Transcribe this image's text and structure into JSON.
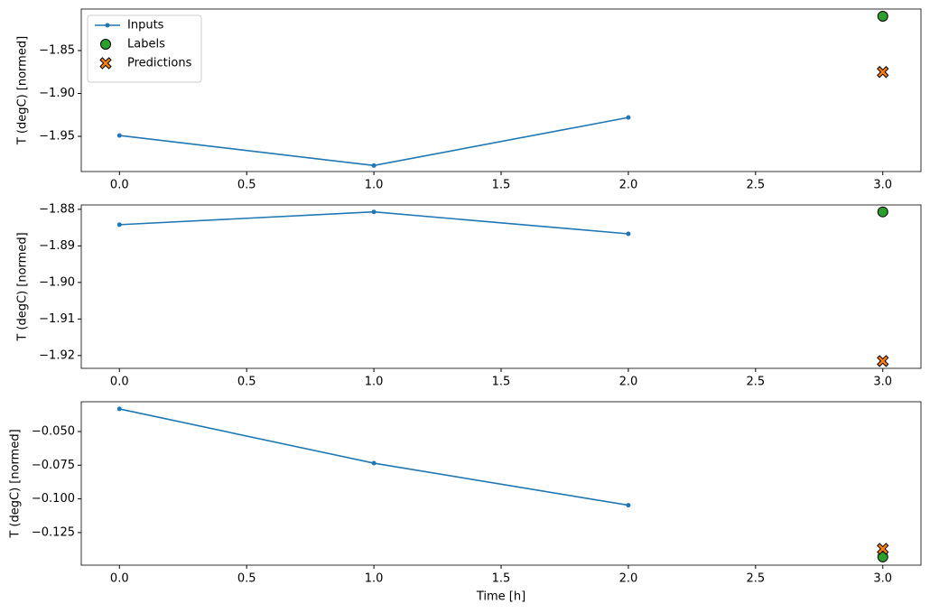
{
  "chart_data": [
    {
      "type": "line",
      "ylabel": "T (degC) [normed]",
      "legend": "upper left",
      "xlim": [
        -0.15,
        3.15
      ],
      "ylim": [
        -1.991,
        -1.8016
      ],
      "xticks": [
        {
          "value": 0,
          "label": "0.0"
        },
        0.5,
        {
          "value": 1,
          "label": "1.0"
        },
        1.5,
        {
          "value": 2,
          "label": "2.0"
        },
        2.5,
        {
          "value": 3,
          "label": "3.0"
        }
      ],
      "yticks": [
        {
          "value": -1.85,
          "label": "−1.85"
        },
        {
          "value": -1.9,
          "label": "−1.90"
        },
        {
          "value": -1.95,
          "label": "−1.95"
        }
      ],
      "series": [
        {
          "name": "Inputs",
          "type": "line",
          "color": "#1f77b4",
          "x": [
            0,
            1,
            2
          ],
          "values": [
            -1.949,
            -1.984,
            -1.928
          ]
        },
        {
          "name": "Labels",
          "type": "scatter",
          "marker": "o",
          "color": "#2ca02c",
          "x": [
            3
          ],
          "values": [
            -1.81
          ]
        },
        {
          "name": "Predictions",
          "type": "scatter",
          "marker": "X",
          "color": "#ff7f0e",
          "x": [
            3
          ],
          "values": [
            -1.875
          ]
        }
      ]
    },
    {
      "type": "line",
      "ylabel": "T (degC) [normed]",
      "xlim": [
        -0.15,
        3.15
      ],
      "ylim": [
        -1.9235,
        -1.8788
      ],
      "xticks": [
        {
          "value": 0,
          "label": "0.0"
        },
        0.5,
        {
          "value": 1,
          "label": "1.0"
        },
        1.5,
        {
          "value": 2,
          "label": "2.0"
        },
        2.5,
        {
          "value": 3,
          "label": "3.0"
        }
      ],
      "yticks": [
        {
          "value": -1.88,
          "label": "−1.88"
        },
        {
          "value": -1.89,
          "label": "−1.89"
        },
        {
          "value": -1.9,
          "label": "−1.90"
        },
        {
          "value": -1.91,
          "label": "−1.91"
        },
        {
          "value": -1.92,
          "label": "−1.92"
        }
      ],
      "series": [
        {
          "type": "line",
          "color": "#1f77b4",
          "x": [
            0,
            1,
            2
          ],
          "values": [
            -1.8842,
            -1.8807,
            -1.8867
          ]
        },
        {
          "type": "scatter",
          "marker": "o",
          "color": "#2ca02c",
          "x": [
            3
          ],
          "values": [
            -1.8807
          ]
        },
        {
          "type": "scatter",
          "marker": "X",
          "color": "#ff7f0e",
          "x": [
            3
          ],
          "values": [
            -1.9215
          ]
        }
      ]
    },
    {
      "type": "line",
      "ylabel": "T (degC) [normed]",
      "xlabel": "Time [h]",
      "xlim": [
        -0.15,
        3.15
      ],
      "ylim": [
        -0.1492,
        -0.0279
      ],
      "xticks": [
        {
          "value": 0,
          "label": "0.0"
        },
        0.5,
        {
          "value": 1,
          "label": "1.0"
        },
        1.5,
        {
          "value": 2,
          "label": "2.0"
        },
        2.5,
        {
          "value": 3,
          "label": "3.0"
        }
      ],
      "yticks": [
        {
          "value": -0.05,
          "label": "−0.050"
        },
        {
          "value": -0.075,
          "label": "−0.075"
        },
        {
          "value": -0.1,
          "label": "−0.100"
        },
        {
          "value": -0.125,
          "label": "−0.125"
        }
      ],
      "series": [
        {
          "type": "line",
          "color": "#1f77b4",
          "x": [
            0,
            1,
            2
          ],
          "values": [
            -0.0332,
            -0.0735,
            -0.1047
          ]
        },
        {
          "type": "scatter",
          "marker": "o",
          "color": "#2ca02c",
          "x": [
            3
          ],
          "values": [
            -0.1431
          ]
        },
        {
          "type": "scatter",
          "marker": "X",
          "color": "#ff7f0e",
          "x": [
            3
          ],
          "values": [
            -0.1371
          ]
        }
      ]
    }
  ]
}
